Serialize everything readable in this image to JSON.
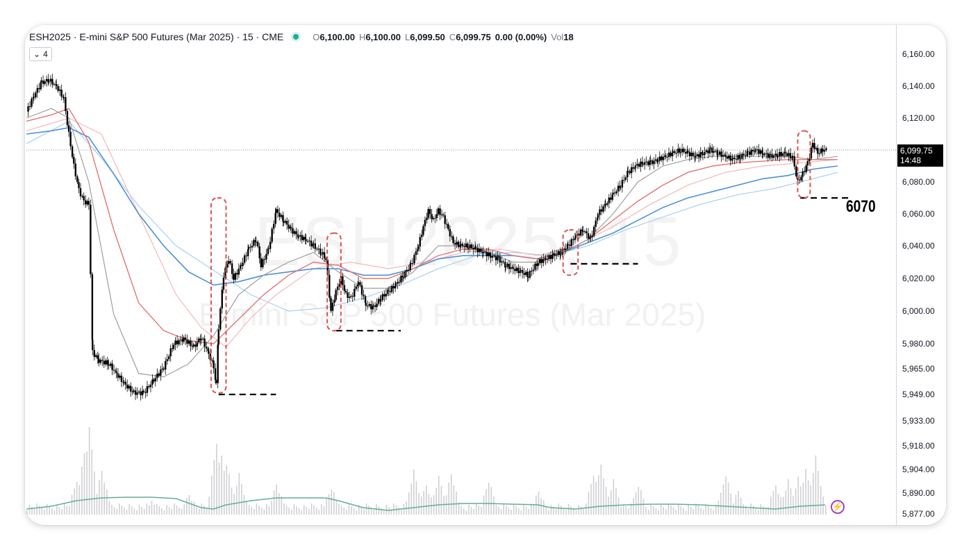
{
  "legend": {
    "symbol_title": "ESH2025 · E-mini S&P 500 Futures (Mar 2025) · 15 · CME",
    "open_label": "O",
    "open": "6,100.00",
    "high_label": "H",
    "high": "6,100.00",
    "low_label": "L",
    "low": "6,099.50",
    "close_label": "C",
    "close": "6,099.75",
    "change": "0.00 (0.00%)",
    "vol_label": "Vol",
    "vol": "18",
    "collapse_label": "4",
    "status_color": "#22ab94"
  },
  "watermark": {
    "line1": "ESH2025, 15",
    "line2": "E-mini S&P 500 Futures (Mar 2025)"
  },
  "price_tag": {
    "price": "6,099.75",
    "countdown": "14:48"
  },
  "annotation": {
    "level_text": "6070"
  },
  "colors": {
    "candle": "#000000",
    "ma_blue": "#4a90d9",
    "ma_red": "#e57373",
    "ma_gray": "#9e9e9e",
    "ma_lightblue": "#a8d0ea",
    "ma_pink": "#f2b8b8",
    "volume": "#cfd0d3",
    "volume_ma": "#5fae9a",
    "box": "#d9534f",
    "bolt": "#a43fc5"
  },
  "chart_data": {
    "type": "candlestick",
    "ylim": [
      5877,
      6160
    ],
    "yticks": [
      "6,160.00",
      "6,140.00",
      "6,120.00",
      "6,099.75",
      "6,080.00",
      "6,060.00",
      "6,040.00",
      "6,020.00",
      "6,000.00",
      "5,980.00",
      "5,965.00",
      "5,949.00",
      "5,933.00",
      "5,918.00",
      "5,904.00",
      "5,890.00",
      "5,877.00"
    ],
    "ytick_values": [
      6160,
      6140,
      6120,
      6100,
      6080,
      6060,
      6040,
      6020,
      6000,
      5980,
      5965,
      5949,
      5933,
      5918,
      5904,
      5890,
      5877
    ],
    "close_path": [
      [
        0,
        6124
      ],
      [
        6,
        6134
      ],
      [
        12,
        6142
      ],
      [
        18,
        6144
      ],
      [
        24,
        6140
      ],
      [
        30,
        6132
      ],
      [
        34,
        6110
      ],
      [
        38,
        6090
      ],
      [
        42,
        6075
      ],
      [
        46,
        6068
      ],
      [
        50,
        6066
      ],
      [
        53,
        5975
      ],
      [
        58,
        5970
      ],
      [
        66,
        5968
      ],
      [
        72,
        5962
      ],
      [
        78,
        5956
      ],
      [
        86,
        5950
      ],
      [
        94,
        5950
      ],
      [
        102,
        5958
      ],
      [
        110,
        5966
      ],
      [
        118,
        5980
      ],
      [
        126,
        5983
      ],
      [
        134,
        5978
      ],
      [
        140,
        5984
      ],
      [
        146,
        5974
      ],
      [
        150,
        5966
      ],
      [
        152,
        5955
      ],
      [
        154,
        5990
      ],
      [
        158,
        6022
      ],
      [
        162,
        6032
      ],
      [
        166,
        6020
      ],
      [
        172,
        6028
      ],
      [
        178,
        6038
      ],
      [
        184,
        6044
      ],
      [
        188,
        6028
      ],
      [
        194,
        6038
      ],
      [
        200,
        6062
      ],
      [
        206,
        6056
      ],
      [
        212,
        6050
      ],
      [
        218,
        6046
      ],
      [
        224,
        6044
      ],
      [
        230,
        6040
      ],
      [
        236,
        6036
      ],
      [
        240,
        6032
      ],
      [
        244,
        6000
      ],
      [
        248,
        6012
      ],
      [
        252,
        6020
      ],
      [
        256,
        6010
      ],
      [
        260,
        6008
      ],
      [
        266,
        6018
      ],
      [
        272,
        6004
      ],
      [
        278,
        6002
      ],
      [
        284,
        6008
      ],
      [
        290,
        6012
      ],
      [
        296,
        6016
      ],
      [
        302,
        6022
      ],
      [
        308,
        6028
      ],
      [
        314,
        6040
      ],
      [
        318,
        6052
      ],
      [
        322,
        6062
      ],
      [
        326,
        6056
      ],
      [
        330,
        6062
      ],
      [
        334,
        6058
      ],
      [
        338,
        6050
      ],
      [
        342,
        6042
      ],
      [
        348,
        6040
      ],
      [
        354,
        6040
      ],
      [
        360,
        6038
      ],
      [
        366,
        6036
      ],
      [
        372,
        6034
      ],
      [
        378,
        6032
      ],
      [
        384,
        6028
      ],
      [
        390,
        6026
      ],
      [
        396,
        6024
      ],
      [
        402,
        6022
      ],
      [
        410,
        6030
      ],
      [
        416,
        6032
      ],
      [
        422,
        6034
      ],
      [
        428,
        6036
      ],
      [
        434,
        6040
      ],
      [
        440,
        6046
      ],
      [
        446,
        6050
      ],
      [
        452,
        6044
      ],
      [
        458,
        6060
      ],
      [
        464,
        6066
      ],
      [
        470,
        6072
      ],
      [
        476,
        6078
      ],
      [
        482,
        6086
      ],
      [
        488,
        6090
      ],
      [
        494,
        6092
      ],
      [
        500,
        6092
      ],
      [
        506,
        6094
      ],
      [
        512,
        6096
      ],
      [
        518,
        6098
      ],
      [
        524,
        6100
      ],
      [
        530,
        6098
      ],
      [
        536,
        6096
      ],
      [
        542,
        6098
      ],
      [
        548,
        6100
      ],
      [
        554,
        6098
      ],
      [
        560,
        6096
      ],
      [
        566,
        6094
      ],
      [
        572,
        6096
      ],
      [
        578,
        6098
      ],
      [
        584,
        6100
      ],
      [
        590,
        6098
      ],
      [
        596,
        6096
      ],
      [
        602,
        6097
      ],
      [
        608,
        6098
      ],
      [
        614,
        6095
      ],
      [
        618,
        6080
      ],
      [
        622,
        6085
      ],
      [
        626,
        6092
      ],
      [
        630,
        6104
      ],
      [
        634,
        6098
      ],
      [
        638,
        6100
      ],
      [
        642,
        6100
      ]
    ],
    "xlim": [
      0,
      650
    ],
    "ma_fast": [
      [
        0,
        6120
      ],
      [
        20,
        6126
      ],
      [
        34,
        6120
      ],
      [
        50,
        6080
      ],
      [
        70,
        5998
      ],
      [
        90,
        5962
      ],
      [
        110,
        5960
      ],
      [
        130,
        5968
      ],
      [
        150,
        5985
      ],
      [
        170,
        6010
      ],
      [
        190,
        6022
      ],
      [
        210,
        6030
      ],
      [
        230,
        6036
      ],
      [
        250,
        6024
      ],
      [
        270,
        6014
      ],
      [
        290,
        6014
      ],
      [
        310,
        6024
      ],
      [
        330,
        6040
      ],
      [
        350,
        6040
      ],
      [
        370,
        6036
      ],
      [
        390,
        6030
      ],
      [
        410,
        6030
      ],
      [
        430,
        6036
      ],
      [
        450,
        6044
      ],
      [
        470,
        6060
      ],
      [
        490,
        6080
      ],
      [
        510,
        6090
      ],
      [
        530,
        6094
      ],
      [
        550,
        6096
      ],
      [
        570,
        6096
      ],
      [
        590,
        6096
      ],
      [
        610,
        6096
      ],
      [
        630,
        6094
      ],
      [
        650,
        6096
      ]
    ],
    "ma_red": [
      [
        0,
        6118
      ],
      [
        20,
        6122
      ],
      [
        34,
        6126
      ],
      [
        50,
        6105
      ],
      [
        70,
        6050
      ],
      [
        90,
        6005
      ],
      [
        110,
        5988
      ],
      [
        130,
        5982
      ],
      [
        150,
        5980
      ],
      [
        170,
        5995
      ],
      [
        190,
        6010
      ],
      [
        210,
        6022
      ],
      [
        230,
        6030
      ],
      [
        250,
        6028
      ],
      [
        270,
        6020
      ],
      [
        290,
        6020
      ],
      [
        310,
        6026
      ],
      [
        330,
        6034
      ],
      [
        350,
        6038
      ],
      [
        370,
        6038
      ],
      [
        390,
        6034
      ],
      [
        410,
        6032
      ],
      [
        430,
        6036
      ],
      [
        450,
        6044
      ],
      [
        470,
        6056
      ],
      [
        490,
        6068
      ],
      [
        510,
        6078
      ],
      [
        530,
        6086
      ],
      [
        550,
        6090
      ],
      [
        570,
        6092
      ],
      [
        590,
        6093
      ],
      [
        610,
        6094
      ],
      [
        630,
        6094
      ],
      [
        650,
        6094
      ]
    ],
    "ma_blue": [
      [
        0,
        6110
      ],
      [
        20,
        6112
      ],
      [
        34,
        6114
      ],
      [
        50,
        6108
      ],
      [
        70,
        6085
      ],
      [
        90,
        6060
      ],
      [
        110,
        6040
      ],
      [
        130,
        6024
      ],
      [
        150,
        6016
      ],
      [
        170,
        6018
      ],
      [
        190,
        6022
      ],
      [
        210,
        6024
      ],
      [
        230,
        6026
      ],
      [
        250,
        6026
      ],
      [
        270,
        6022
      ],
      [
        290,
        6022
      ],
      [
        310,
        6026
      ],
      [
        330,
        6032
      ],
      [
        350,
        6034
      ],
      [
        370,
        6034
      ],
      [
        390,
        6034
      ],
      [
        410,
        6032
      ],
      [
        430,
        6036
      ],
      [
        450,
        6042
      ],
      [
        470,
        6048
      ],
      [
        490,
        6056
      ],
      [
        510,
        6064
      ],
      [
        530,
        6070
      ],
      [
        550,
        6074
      ],
      [
        570,
        6078
      ],
      [
        590,
        6082
      ],
      [
        610,
        6084
      ],
      [
        630,
        6088
      ],
      [
        650,
        6090
      ]
    ],
    "ma_light": [
      [
        0,
        6104
      ],
      [
        34,
        6118
      ],
      [
        60,
        6095
      ],
      [
        90,
        6065
      ],
      [
        120,
        6040
      ],
      [
        150,
        6025
      ],
      [
        180,
        6010
      ],
      [
        210,
        6000
      ],
      [
        240,
        6002
      ],
      [
        270,
        6008
      ],
      [
        300,
        6016
      ],
      [
        330,
        6026
      ],
      [
        360,
        6034
      ],
      [
        390,
        6036
      ],
      [
        420,
        6034
      ],
      [
        450,
        6040
      ],
      [
        480,
        6050
      ],
      [
        510,
        6058
      ],
      [
        540,
        6066
      ],
      [
        570,
        6072
      ],
      [
        600,
        6076
      ],
      [
        630,
        6082
      ],
      [
        650,
        6086
      ]
    ],
    "ma_pink": [
      [
        0,
        6112
      ],
      [
        34,
        6120
      ],
      [
        60,
        6110
      ],
      [
        90,
        6060
      ],
      [
        120,
        6010
      ],
      [
        140,
        5990
      ],
      [
        160,
        5978
      ],
      [
        180,
        5996
      ],
      [
        200,
        6010
      ],
      [
        230,
        6026
      ],
      [
        260,
        6030
      ],
      [
        290,
        6026
      ],
      [
        320,
        6030
      ],
      [
        350,
        6036
      ],
      [
        380,
        6038
      ],
      [
        410,
        6034
      ],
      [
        440,
        6040
      ],
      [
        470,
        6052
      ],
      [
        500,
        6066
      ],
      [
        530,
        6078
      ],
      [
        560,
        6086
      ],
      [
        590,
        6090
      ],
      [
        620,
        6092
      ],
      [
        650,
        6094
      ]
    ],
    "volume_ma": [
      [
        0,
        8
      ],
      [
        20,
        12
      ],
      [
        40,
        20
      ],
      [
        60,
        24
      ],
      [
        80,
        25
      ],
      [
        100,
        25
      ],
      [
        120,
        23
      ],
      [
        140,
        10
      ],
      [
        150,
        8
      ],
      [
        160,
        14
      ],
      [
        180,
        20
      ],
      [
        200,
        24
      ],
      [
        220,
        24
      ],
      [
        240,
        24
      ],
      [
        250,
        20
      ],
      [
        270,
        10
      ],
      [
        290,
        6
      ],
      [
        310,
        10
      ],
      [
        330,
        14
      ],
      [
        350,
        16
      ],
      [
        370,
        16
      ],
      [
        390,
        15
      ],
      [
        410,
        14
      ],
      [
        420,
        10
      ],
      [
        440,
        8
      ],
      [
        460,
        12
      ],
      [
        480,
        14
      ],
      [
        500,
        15
      ],
      [
        520,
        15
      ],
      [
        540,
        14
      ],
      [
        560,
        12
      ],
      [
        580,
        10
      ],
      [
        600,
        8
      ],
      [
        610,
        10
      ],
      [
        620,
        12
      ],
      [
        640,
        14
      ]
    ],
    "volume_peaks": [
      [
        40,
        45
      ],
      [
        46,
        85
      ],
      [
        50,
        120
      ],
      [
        60,
        60
      ],
      [
        100,
        15
      ],
      [
        130,
        25
      ],
      [
        152,
        100
      ],
      [
        156,
        80
      ],
      [
        160,
        70
      ],
      [
        170,
        55
      ],
      [
        200,
        40
      ],
      [
        244,
        35
      ],
      [
        310,
        60
      ],
      [
        320,
        40
      ],
      [
        330,
        50
      ],
      [
        340,
        55
      ],
      [
        370,
        45
      ],
      [
        410,
        30
      ],
      [
        454,
        55
      ],
      [
        460,
        70
      ],
      [
        470,
        45
      ],
      [
        490,
        40
      ],
      [
        560,
        55
      ],
      [
        570,
        30
      ],
      [
        600,
        40
      ],
      [
        610,
        45
      ],
      [
        618,
        50
      ],
      [
        624,
        60
      ],
      [
        632,
        80
      ]
    ],
    "support_levels": [
      {
        "x": [
          154,
          200
        ],
        "y": 5949
      },
      {
        "x": [
          248,
          300
        ],
        "y": 5988
      },
      {
        "x": [
          436,
          490
        ],
        "y": 6029
      },
      {
        "x": [
          620,
          660
        ],
        "y": 6070
      }
    ],
    "boxes": [
      {
        "x": [
          148,
          160
        ],
        "y": [
          5950,
          6070
        ]
      },
      {
        "x": [
          241,
          252
        ],
        "y": [
          5988,
          6048
        ]
      },
      {
        "x": [
          430,
          442
        ],
        "y": [
          6022,
          6050
        ]
      },
      {
        "x": [
          618,
          628
        ],
        "y": [
          6070,
          6112
        ]
      }
    ]
  }
}
